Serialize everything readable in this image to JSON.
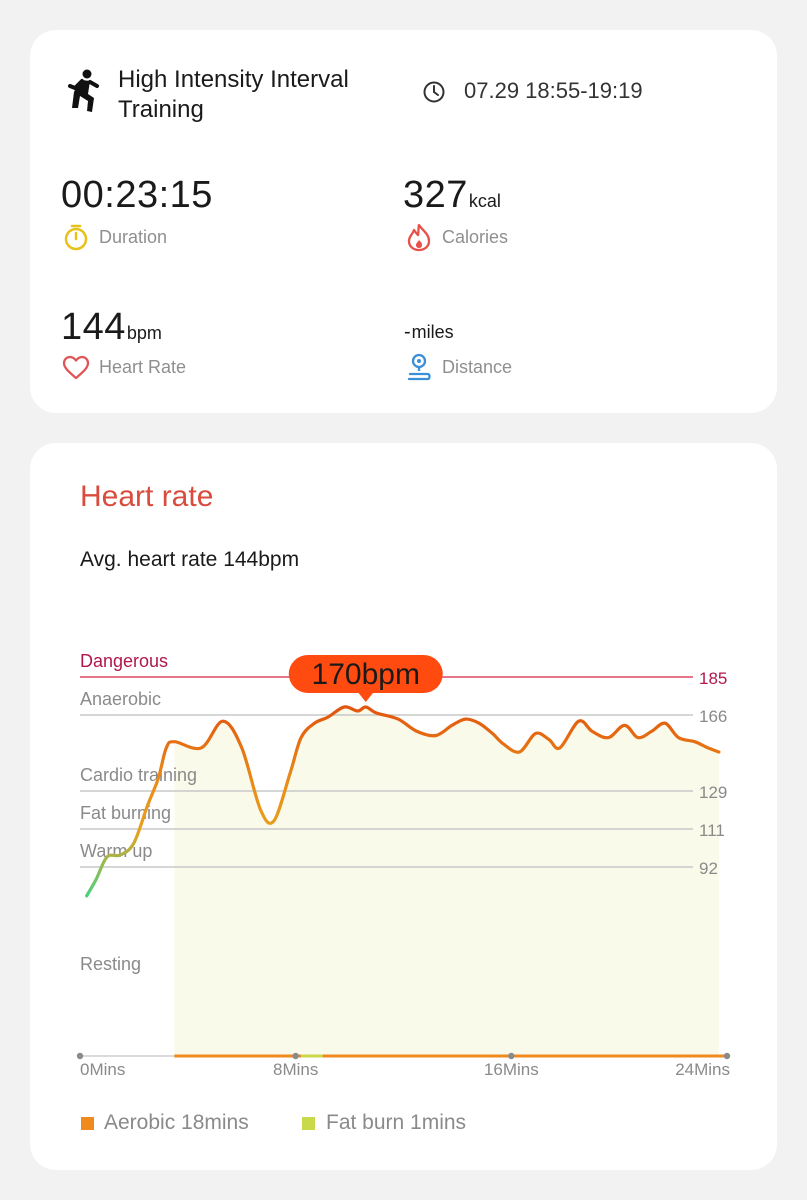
{
  "summary": {
    "workout_name": "High Intensity Interval Training",
    "time_range": "07.29 18:55-19:19",
    "duration": {
      "value": "00:23:15",
      "label": "Duration"
    },
    "calories": {
      "value": "327",
      "unit": "kcal",
      "label": "Calories"
    },
    "heart_rate": {
      "value": "144",
      "unit": "bpm",
      "label": "Heart Rate"
    },
    "distance": {
      "value": "-",
      "unit": "miles",
      "label": "Distance"
    }
  },
  "heart_rate_card": {
    "title": "Heart rate",
    "avg_text": "Avg. heart rate 144bpm",
    "peak_tooltip": "170bpm",
    "legend": [
      {
        "label": "Aerobic 18mins",
        "color": "#f08a1c"
      },
      {
        "label": "Fat burn 1mins",
        "color": "#c9d94a"
      }
    ]
  },
  "colors": {
    "accent_red": "#d94c3d",
    "danger_line": "#e0647a",
    "tooltip_bg": "#ff4a10",
    "fill": "#fafaeb",
    "curve_high": "#e2550e",
    "curve_mid": "#e8a020",
    "curve_low": "#4cd07e"
  },
  "chart_data": {
    "type": "line",
    "x_unit": "Mins",
    "xlim": [
      0,
      24
    ],
    "x_ticks": [
      {
        "value": 0,
        "label": "0Mins"
      },
      {
        "value": 8,
        "label": "8Mins"
      },
      {
        "value": 16,
        "label": "16Mins"
      },
      {
        "value": 24,
        "label": "24Mins"
      }
    ],
    "zones": [
      {
        "name": "Dangerous",
        "threshold": 185,
        "threshold_label": "185"
      },
      {
        "name": "Anaerobic",
        "threshold": 166,
        "threshold_label": "166"
      },
      {
        "name": "Cardio training",
        "threshold": 129,
        "threshold_label": "129"
      },
      {
        "name": "Fat burning",
        "threshold": 111,
        "threshold_label": "111"
      },
      {
        "name": "Warm up",
        "threshold": 92,
        "threshold_label": "92"
      },
      {
        "name": "Resting",
        "threshold": null,
        "threshold_label": ""
      }
    ],
    "peak": {
      "x": 10.6,
      "y": 170
    },
    "series": [
      {
        "x": [
          0.25,
          0.6,
          1.0,
          1.5,
          2.0,
          2.5,
          2.9,
          3.2,
          3.5,
          4.5,
          5.3,
          6.0,
          6.7,
          7.2,
          7.8,
          8.2,
          8.7,
          9.2,
          9.8,
          10.3,
          10.6,
          11.0,
          11.8,
          12.5,
          13.2,
          13.8,
          14.3,
          14.8,
          15.3,
          15.7,
          16.3,
          16.9,
          17.4,
          17.8,
          18.5,
          19.0,
          19.6,
          20.2,
          20.7,
          21.2,
          21.7,
          22.2,
          22.8,
          23.3,
          23.7
        ],
        "y": [
          78,
          86,
          97,
          98,
          104,
          122,
          135,
          150,
          153,
          150,
          163,
          150,
          120,
          115,
          138,
          155,
          162,
          165,
          170,
          168,
          170,
          167,
          164,
          158,
          156,
          161,
          164,
          162,
          157,
          152,
          148,
          157,
          154,
          150,
          163,
          158,
          155,
          161,
          155,
          158,
          162,
          155,
          153,
          150,
          148
        ]
      }
    ]
  }
}
